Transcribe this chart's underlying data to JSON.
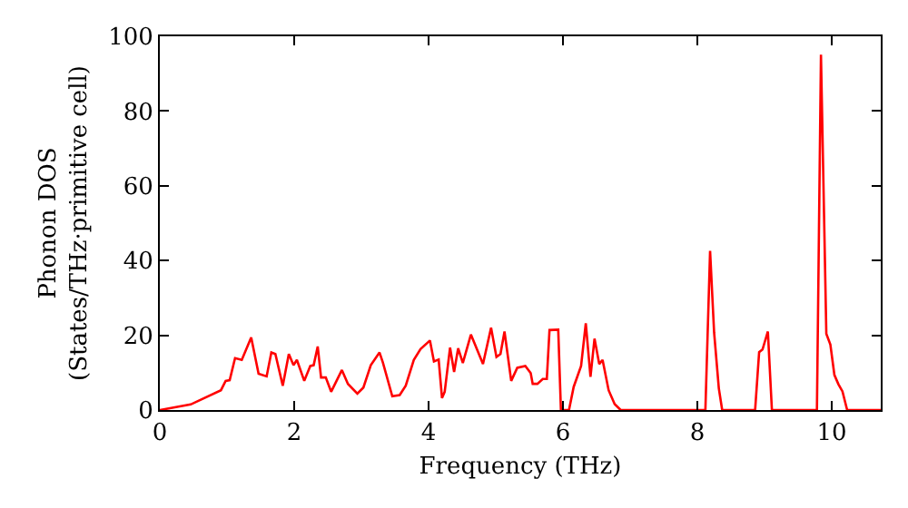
{
  "chart_data": {
    "type": "line",
    "xlabel": "Frequency (THz)",
    "ylabel": "Phonon DOS\n(States/THz·primitive cell)",
    "xlim": [
      0,
      10.73
    ],
    "ylim": [
      0,
      100
    ],
    "xticks": [
      0,
      2,
      4,
      6,
      8,
      10
    ],
    "yticks": [
      0,
      20,
      40,
      60,
      80,
      100
    ],
    "legend": false,
    "marker": "none",
    "line_style": "solid",
    "series": [
      {
        "color": "#ff0000",
        "x": [
          0,
          0.46,
          0.91,
          0.98,
          1.04,
          1.12,
          1.22,
          1.36,
          1.47,
          1.59,
          1.66,
          1.72,
          1.83,
          1.92,
          1.99,
          2.04,
          2.15,
          2.24,
          2.29,
          2.35,
          2.4,
          2.47,
          2.55,
          2.71,
          2.8,
          2.94,
          3.03,
          3.14,
          3.27,
          3.32,
          3.46,
          3.57,
          3.66,
          3.78,
          3.88,
          4.02,
          4.08,
          4.15,
          4.2,
          4.24,
          4.32,
          4.38,
          4.44,
          4.51,
          4.63,
          4.81,
          4.93,
          5.01,
          5.07,
          5.13,
          5.23,
          5.32,
          5.44,
          5.52,
          5.55,
          5.62,
          5.7,
          5.76,
          5.8,
          5.93,
          5.97,
          6.09,
          6.16,
          6.27,
          6.34,
          6.41,
          6.47,
          6.54,
          6.59,
          6.68,
          6.77,
          6.86,
          8.12,
          8.19,
          8.25,
          8.32,
          8.37,
          8.86,
          8.92,
          8.97,
          9.05,
          9.11,
          9.78,
          9.84,
          9.92,
          9.98,
          10.04,
          10.1,
          10.16,
          10.23,
          10.73
        ],
        "values": [
          0,
          1.5,
          5.3,
          7.8,
          8,
          13.9,
          13.4,
          19.4,
          9.7,
          9,
          15.4,
          15,
          6.5,
          15,
          12,
          13.4,
          7.8,
          11.8,
          12,
          17,
          8.7,
          8.7,
          4.9,
          10.7,
          7,
          4.4,
          6,
          12,
          15.4,
          12.7,
          3.7,
          4,
          6.5,
          13.4,
          16.3,
          18.6,
          13,
          13.5,
          3.2,
          4.9,
          16.7,
          10.2,
          16.5,
          12.6,
          20.2,
          12.3,
          22,
          14.2,
          15,
          21,
          7.8,
          11.3,
          11.8,
          9.9,
          7,
          7,
          8.3,
          8.3,
          21.4,
          21.5,
          0,
          0,
          6.2,
          11.8,
          23.2,
          8.9,
          19.1,
          12.3,
          13.4,
          5.3,
          1.6,
          0,
          0,
          42.6,
          20.7,
          5.8,
          0,
          0,
          15.5,
          16.2,
          21,
          0,
          0,
          95.1,
          20.4,
          17.5,
          9.4,
          6.9,
          5,
          0,
          0
        ]
      }
    ]
  }
}
